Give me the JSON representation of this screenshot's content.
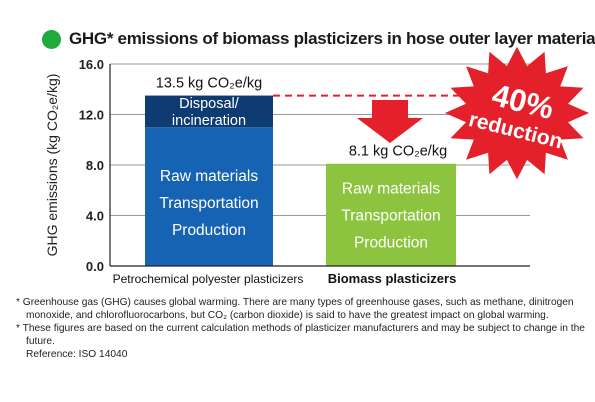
{
  "title": "GHG* emissions of biomass plasticizers in hose outer layer materials",
  "colors": {
    "title_dot": "#1faa3c",
    "petro_stage": "#1763b3",
    "petro_disposal": "#0e3c72",
    "biomass": "#8cc43f",
    "reduction": "#e4202a",
    "dashed_line": "#e4202a"
  },
  "chart_data": {
    "type": "bar",
    "stacked": true,
    "ylabel": "GHG emissions (kg CO₂e/kg)",
    "ylim": [
      0,
      16
    ],
    "yticks": [
      "0.0",
      "4.0",
      "8.0",
      "12.0",
      "16.0"
    ],
    "ytick_values": [
      0,
      4,
      8,
      12,
      16
    ],
    "grid": true,
    "categories": [
      "Petrochemical polyester plasticizers",
      "Biomass plasticizers"
    ],
    "series": [
      {
        "name": "Raw materials / Transportation / Production",
        "values": [
          11.0,
          8.1
        ],
        "labels": [
          [
            "Raw materials",
            "Transportation",
            "Production"
          ],
          [
            "Raw materials",
            "Transportation",
            "Production"
          ]
        ]
      },
      {
        "name": "Disposal/ incineration",
        "values": [
          2.5,
          0
        ],
        "labels": [
          [
            "Disposal/",
            "incineration"
          ],
          []
        ]
      }
    ],
    "totals": [
      13.5,
      8.1
    ],
    "total_labels": [
      "13.5 kg CO₂e/kg",
      "8.1 kg CO₂e/kg"
    ],
    "annotation": {
      "line1": "40%",
      "line2": "reduction"
    }
  },
  "notes": [
    "* Greenhouse gas (GHG) causes global warming. There are many types of greenhouse gases, such as methane, dinitrogen monoxide, and chlorofluorocarbons, but CO₂ (carbon dioxide) is said to have the greatest impact on global warming.",
    "* These figures are based on the current calculation methods of plasticizer manufacturers and may be subject to change in the future."
  ],
  "reference": "Reference: ISO 14040"
}
